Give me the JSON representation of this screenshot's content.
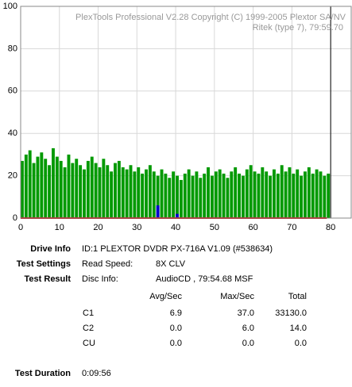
{
  "chart_data": {
    "type": "bar",
    "title": "PlexTools Professional V2.28 Copyright (C) 1999-2005 Plextor SA/NV",
    "subtitle": "Ritek (type 7), 79:59.70",
    "x": [
      0,
      1,
      2,
      3,
      4,
      5,
      6,
      7,
      8,
      9,
      10,
      11,
      12,
      13,
      14,
      15,
      16,
      17,
      18,
      19,
      20,
      21,
      22,
      23,
      24,
      25,
      26,
      27,
      28,
      29,
      30,
      31,
      32,
      33,
      34,
      35,
      36,
      37,
      38,
      39,
      40,
      41,
      42,
      43,
      44,
      45,
      46,
      47,
      48,
      49,
      50,
      51,
      52,
      53,
      54,
      55,
      56,
      57,
      58,
      59,
      60,
      61,
      62,
      63,
      64,
      65,
      66,
      67,
      68,
      69,
      70,
      71,
      72,
      73,
      74,
      75,
      76,
      77,
      78,
      79
    ],
    "series": [
      {
        "name": "C1",
        "color": "#009900",
        "mark": "bar",
        "values": [
          27,
          30,
          32,
          26,
          29,
          31,
          28,
          25,
          33,
          29,
          27,
          24,
          30,
          26,
          28,
          25,
          23,
          27,
          29,
          26,
          24,
          28,
          25,
          22,
          26,
          27,
          24,
          23,
          25,
          22,
          24,
          21,
          23,
          25,
          22,
          20,
          23,
          21,
          19,
          22,
          20,
          18,
          21,
          23,
          20,
          22,
          19,
          21,
          24,
          20,
          22,
          23,
          21,
          19,
          22,
          24,
          21,
          20,
          23,
          25,
          22,
          21,
          24,
          22,
          20,
          23,
          21,
          25,
          22,
          24,
          21,
          23,
          20,
          22,
          24,
          21,
          23,
          22,
          20,
          21
        ]
      },
      {
        "name": "C2",
        "color": "#0000cc",
        "mark": "bar",
        "values": [
          0,
          0,
          0,
          0,
          0,
          0,
          0,
          0,
          0,
          0,
          0,
          0,
          0,
          0,
          0,
          0,
          0,
          0,
          0,
          0,
          0,
          0,
          0,
          0,
          0,
          0,
          0,
          0,
          0,
          0,
          0,
          0,
          0,
          0,
          0,
          6,
          0,
          0,
          0,
          0,
          2,
          0,
          0,
          0,
          0,
          0,
          0,
          0,
          0,
          0,
          0,
          0,
          0,
          0,
          0,
          0,
          0,
          0,
          0,
          0,
          0,
          0,
          0,
          0,
          0,
          0,
          0,
          0,
          0,
          0,
          0,
          0,
          0,
          0,
          0,
          0,
          0,
          0,
          0,
          0
        ]
      },
      {
        "name": "CU",
        "color": "#cc0000",
        "mark": "line",
        "values": [
          0,
          0,
          0,
          0,
          0,
          0,
          0,
          0,
          0,
          0,
          0,
          0,
          0,
          0,
          0,
          0,
          0,
          0,
          0,
          0,
          0,
          0,
          0,
          0,
          0,
          0,
          0,
          0,
          0,
          0,
          0,
          0,
          0,
          0,
          0,
          0,
          0,
          0,
          0,
          0,
          0,
          0,
          0,
          0,
          0,
          0,
          0,
          0,
          0,
          0,
          0,
          0,
          0,
          0,
          0,
          0,
          0,
          0,
          0,
          0,
          0,
          0,
          0,
          0,
          0,
          0,
          0,
          0,
          0,
          0,
          0,
          0,
          0,
          0,
          0,
          0,
          0,
          0,
          0,
          0
        ]
      }
    ],
    "xlim": [
      0,
      85.3
    ],
    "xticks": [
      0,
      10,
      20,
      30,
      40,
      50,
      60,
      70,
      80
    ],
    "ylim": [
      0,
      100
    ],
    "yticks": [
      0,
      20,
      40,
      60,
      80,
      100
    ],
    "grid": true,
    "marker_x": 80
  },
  "info": {
    "drive_label": "Drive Info",
    "drive_value": "ID:1 PLEXTOR DVDR PX-716A V1.09 (#538634)",
    "settings_label": "Test Settings",
    "settings_key": "Read Speed:",
    "settings_value": "8X CLV",
    "result_label": "Test Result",
    "result_key": "Disc Info:",
    "result_value": "AudioCD , 79:54.68 MSF",
    "table": {
      "header": [
        "Avg/Sec",
        "Max/Sec",
        "Total"
      ],
      "rows": [
        [
          "C1",
          "6.9",
          "37.0",
          "33130.0"
        ],
        [
          "C2",
          "0.0",
          "6.0",
          "14.0"
        ],
        [
          "CU",
          "0.0",
          "0.0",
          "0.0"
        ]
      ]
    },
    "duration_label": "Test Duration",
    "duration_value": "0:09:56"
  }
}
